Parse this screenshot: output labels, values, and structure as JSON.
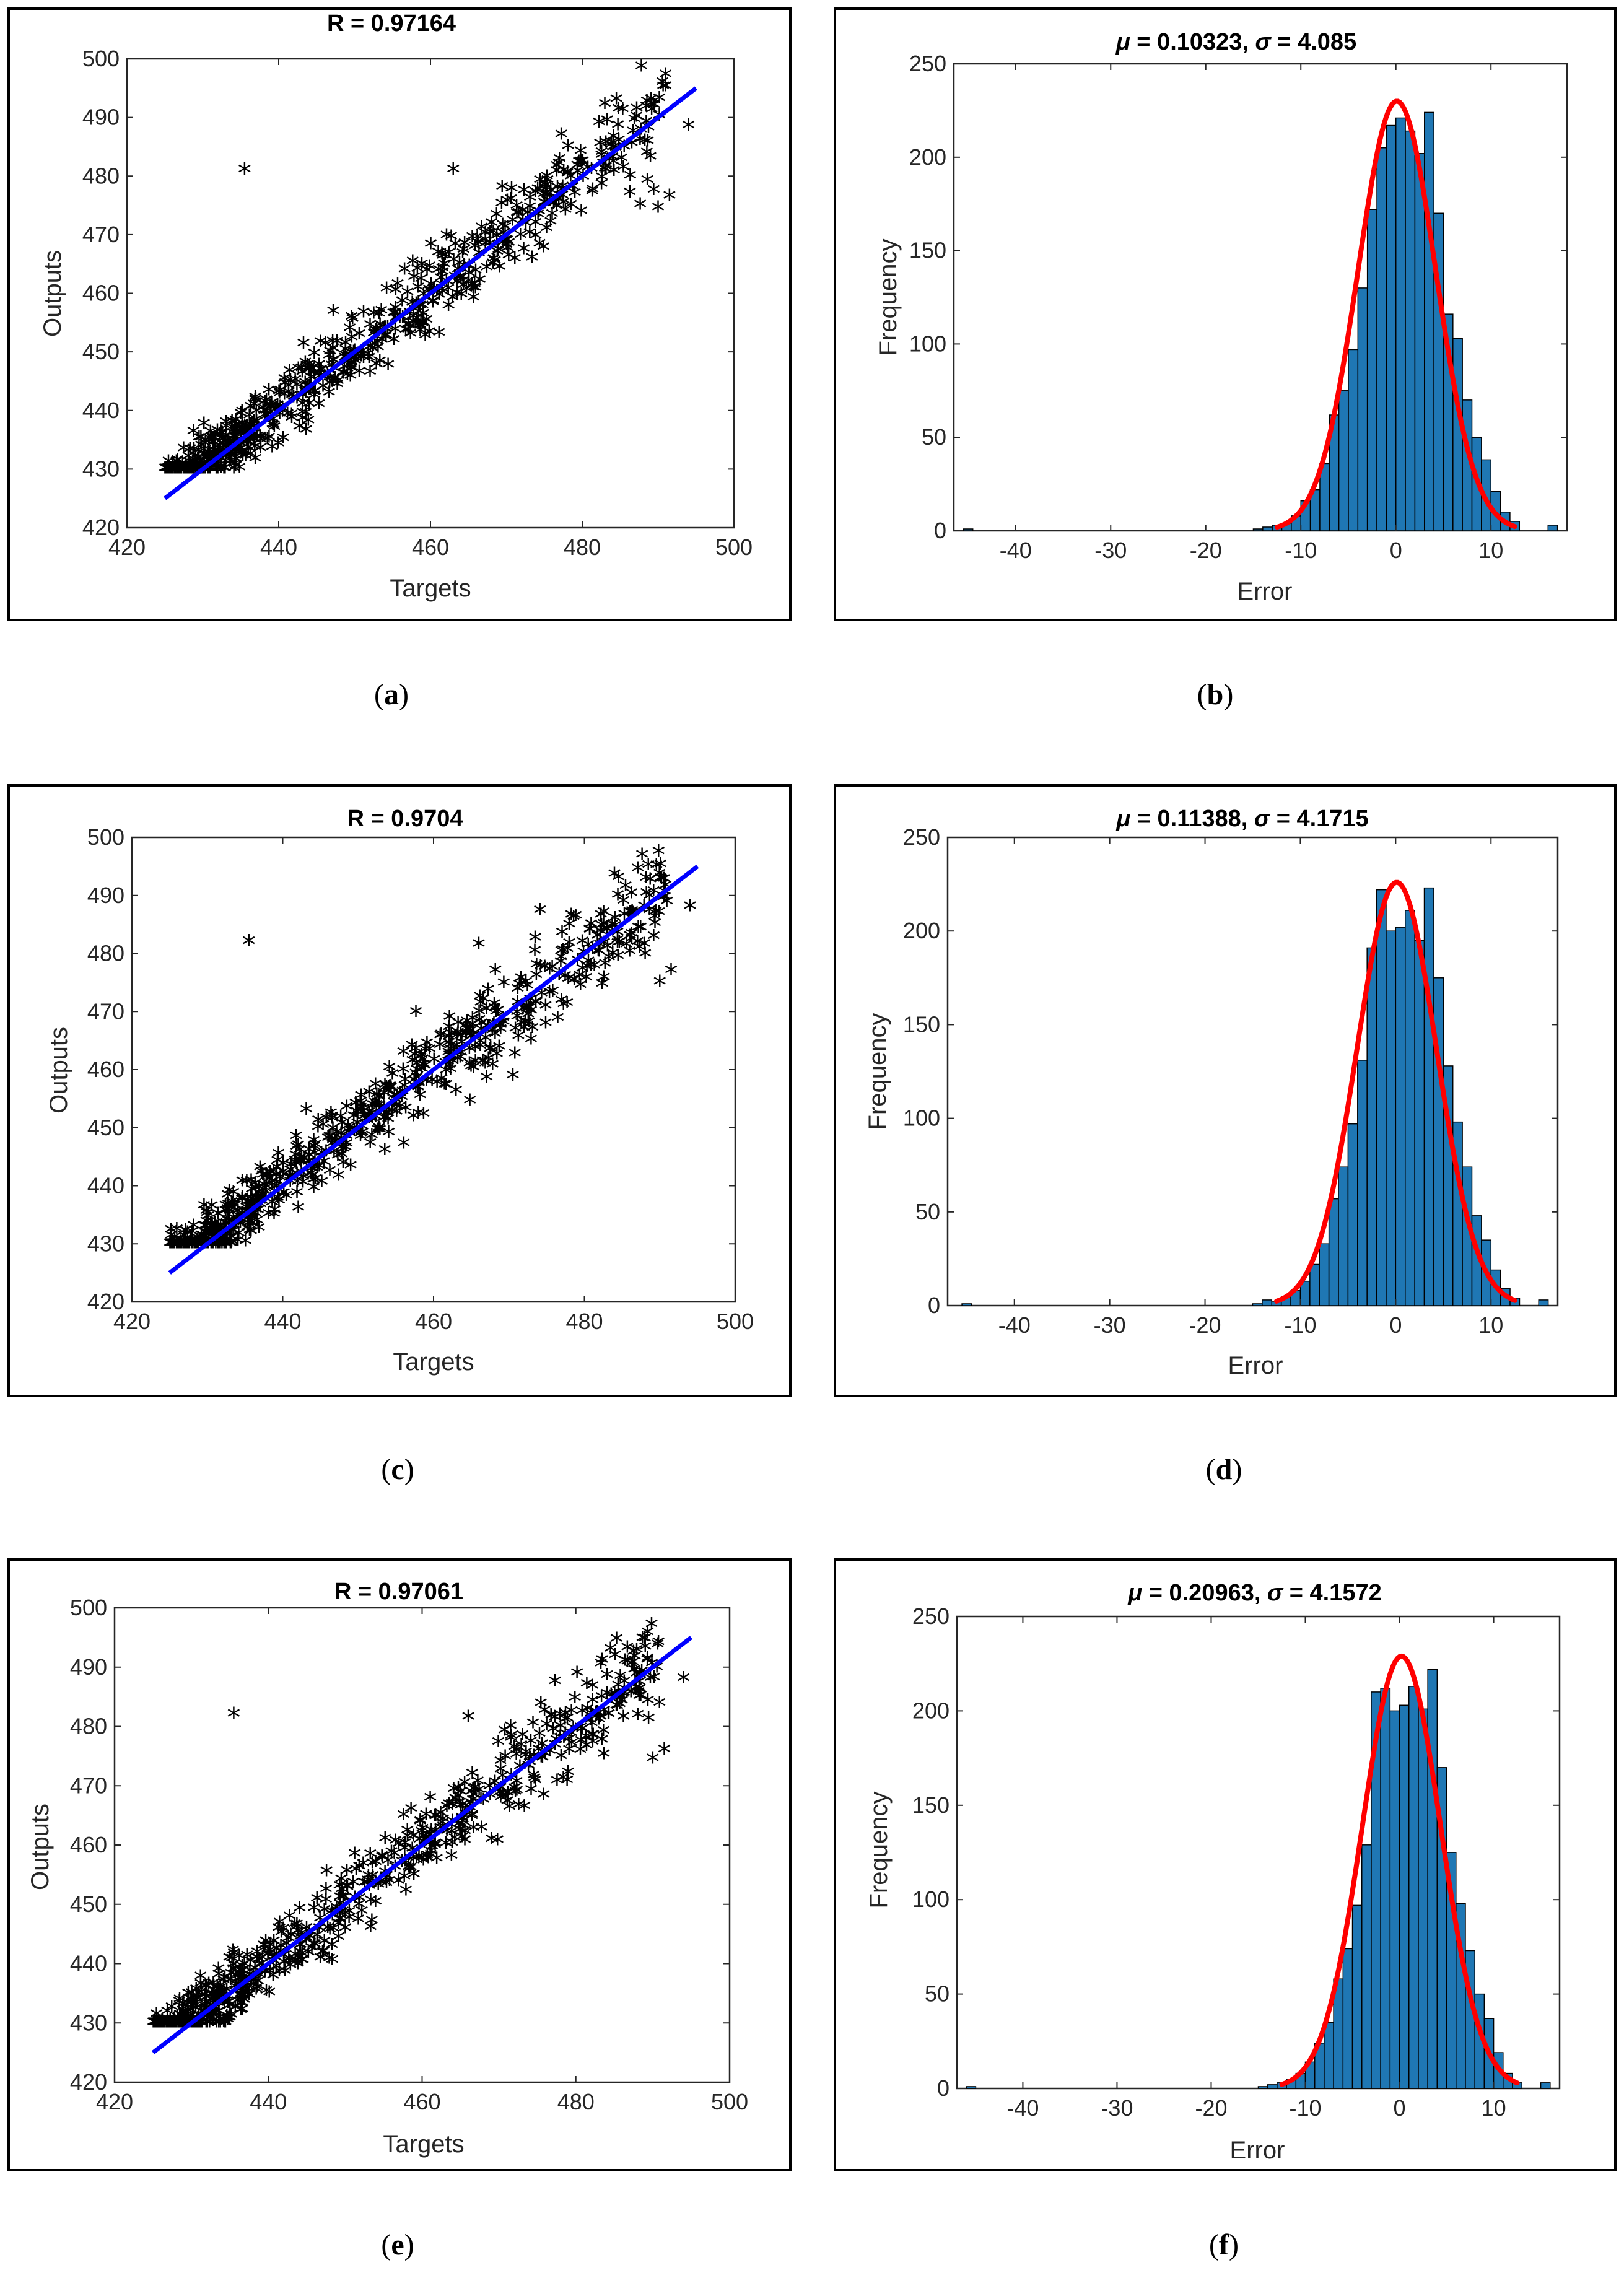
{
  "figure": {
    "panels": [
      {
        "id": "a",
        "caption": {
          "open": "(",
          "letter": "a",
          "close": ")"
        }
      },
      {
        "id": "b",
        "caption": {
          "open": "(",
          "letter": "b",
          "close": ")"
        }
      },
      {
        "id": "c",
        "caption": {
          "open": "(",
          "letter": "c",
          "close": ")"
        }
      },
      {
        "id": "d",
        "caption": {
          "open": "(",
          "letter": "d",
          "close": ")"
        }
      },
      {
        "id": "e",
        "caption": {
          "open": "(",
          "letter": "e",
          "close": ")"
        }
      },
      {
        "id": "f",
        "caption": {
          "open": "(",
          "letter": "f",
          "close": ")"
        }
      }
    ]
  },
  "colors": {
    "scatter_marker": "#000000",
    "fit_line": "#0000ff",
    "hist_bar": "#1f77b4",
    "normal_curve": "#ff0000"
  },
  "chart_data": [
    {
      "type": "scatter",
      "panel": "a",
      "title": "R = 0.97164",
      "xlabel": "Targets",
      "ylabel": "Outputs",
      "xlim": [
        420,
        500
      ],
      "ylim": [
        420,
        500
      ],
      "xticks": [
        "420",
        "440",
        "460",
        "480",
        "500"
      ],
      "yticks": [
        "420",
        "430",
        "440",
        "450",
        "460",
        "470",
        "480",
        "490",
        "500"
      ],
      "fit_line": {
        "x": [
          425,
          495
        ],
        "y": [
          425,
          495
        ]
      },
      "marker": "*",
      "outliers": [
        [
          435.5,
          480.5
        ],
        [
          463,
          480.5
        ],
        [
          490,
          474
        ],
        [
          491.5,
          476
        ],
        [
          494,
          488
        ],
        [
          489.5,
          491.5
        ],
        [
          484.5,
          492.5
        ]
      ]
    },
    {
      "type": "histogram",
      "panel": "b",
      "title": "μ = 0.10323, σ = 4.085",
      "title_parts": {
        "mu": "μ",
        "mu_val": " = 0.10323, ",
        "sigma": "σ",
        "sigma_val": " = 4.085"
      },
      "xlabel": "Error",
      "ylabel": "Frequency",
      "xlim": [
        -46.5,
        18
      ],
      "ylim": [
        0,
        250
      ],
      "xticks": [
        "-40",
        "-30",
        "-20",
        "-10",
        "0",
        "10"
      ],
      "yticks": [
        "0",
        "50",
        "100",
        "150",
        "200",
        "250"
      ],
      "bin_edges": [
        -15,
        -14,
        -13,
        -12,
        -11,
        -10,
        -9,
        -8,
        -7,
        -6,
        -5,
        -4,
        -3,
        -2,
        -1,
        0,
        1,
        2,
        3,
        4,
        5,
        6,
        7,
        8,
        9,
        10,
        11,
        12,
        13
      ],
      "counts": [
        1,
        2,
        3,
        4,
        8,
        16,
        22,
        36,
        62,
        75,
        97,
        130,
        172,
        205,
        217,
        221,
        214,
        202,
        224,
        170,
        116,
        103,
        70,
        50,
        38,
        21,
        10,
        5
      ],
      "extra_bars": [
        {
          "x": -45,
          "count": 1
        },
        {
          "x": 16.5,
          "count": 3
        }
      ],
      "normal": {
        "mu": 0.10323,
        "sigma": 4.085,
        "peak": 230,
        "range": [
          -12.5,
          12.5
        ]
      }
    },
    {
      "type": "scatter",
      "panel": "c",
      "title": "R = 0.9704",
      "xlabel": "Targets",
      "ylabel": "Outputs",
      "xlim": [
        420,
        500
      ],
      "ylim": [
        420,
        500
      ],
      "xticks": [
        "420",
        "440",
        "460",
        "480",
        "500"
      ],
      "yticks": [
        "420",
        "430",
        "440",
        "450",
        "460",
        "470",
        "480",
        "490",
        "500"
      ],
      "fit_line": {
        "x": [
          425,
          495
        ],
        "y": [
          425,
          495
        ]
      },
      "marker": "*",
      "outliers": [
        [
          435.5,
          481.5
        ],
        [
          466,
          481
        ],
        [
          490,
          474.5
        ],
        [
          491.5,
          476.5
        ],
        [
          494,
          487.5
        ],
        [
          484.5,
          492.5
        ]
      ]
    },
    {
      "type": "histogram",
      "panel": "d",
      "title": "μ = 0.11388, σ = 4.1715",
      "title_parts": {
        "mu": "μ",
        "mu_val": " = 0.11388, ",
        "sigma": "σ",
        "sigma_val": " = 4.1715"
      },
      "xlabel": "Error",
      "ylabel": "Frequency",
      "xlim": [
        -47,
        17
      ],
      "ylim": [
        0,
        250
      ],
      "xticks": [
        "-40",
        "-30",
        "-20",
        "-10",
        "0",
        "10"
      ],
      "yticks": [
        "0",
        "50",
        "100",
        "150",
        "200",
        "250"
      ],
      "bin_edges": [
        -15,
        -14,
        -13,
        -12,
        -11,
        -10,
        -9,
        -8,
        -7,
        -6,
        -5,
        -4,
        -3,
        -2,
        -1,
        0,
        1,
        2,
        3,
        4,
        5,
        6,
        7,
        8,
        9,
        10,
        11,
        12,
        13
      ],
      "counts": [
        1,
        3,
        2,
        5,
        8,
        13,
        22,
        33,
        57,
        74,
        97,
        131,
        191,
        222,
        200,
        202,
        211,
        195,
        223,
        175,
        128,
        98,
        74,
        48,
        35,
        19,
        9,
        4
      ],
      "extra_bars": [
        {
          "x": -45,
          "count": 1
        },
        {
          "x": 15.5,
          "count": 3
        }
      ],
      "normal": {
        "mu": 0.11388,
        "sigma": 4.1715,
        "peak": 226,
        "range": [
          -12.5,
          12.5
        ]
      }
    },
    {
      "type": "scatter",
      "panel": "e",
      "title": "R = 0.97061",
      "xlabel": "Targets",
      "ylabel": "Outputs",
      "xlim": [
        420,
        500
      ],
      "ylim": [
        420,
        500
      ],
      "xticks": [
        "420",
        "440",
        "460",
        "480",
        "500"
      ],
      "yticks": [
        "420",
        "430",
        "440",
        "450",
        "460",
        "470",
        "480",
        "490",
        "500"
      ],
      "fit_line": {
        "x": [
          425,
          495
        ],
        "y": [
          425,
          495
        ]
      },
      "marker": "*",
      "outliers": [
        [
          435.5,
          481.5
        ],
        [
          466,
          481
        ],
        [
          490,
          474
        ],
        [
          491.5,
          475.5
        ],
        [
          494,
          487.5
        ],
        [
          484.5,
          492.5
        ]
      ]
    },
    {
      "type": "histogram",
      "panel": "f",
      "title": "μ = 0.20963, σ = 4.1572",
      "title_parts": {
        "mu": "μ",
        "mu_val": " = 0.20963, ",
        "sigma": "σ",
        "sigma_val": " = 4.1572"
      },
      "xlabel": "Error",
      "ylabel": "Frequency",
      "xlim": [
        -47,
        17
      ],
      "ylim": [
        0,
        250
      ],
      "xticks": [
        "-40",
        "-30",
        "-20",
        "-10",
        "0",
        "10"
      ],
      "yticks": [
        "0",
        "50",
        "100",
        "150",
        "200",
        "250"
      ],
      "bin_edges": [
        -15,
        -14,
        -13,
        -12,
        -11,
        -10,
        -9,
        -8,
        -7,
        -6,
        -5,
        -4,
        -3,
        -2,
        -1,
        0,
        1,
        2,
        3,
        4,
        5,
        6,
        7,
        8,
        9,
        10,
        11,
        12,
        13
      ],
      "counts": [
        1,
        2,
        3,
        5,
        8,
        14,
        24,
        35,
        58,
        74,
        97,
        129,
        210,
        212,
        200,
        203,
        213,
        201,
        222,
        170,
        125,
        98,
        73,
        50,
        37,
        19,
        8,
        3
      ],
      "extra_bars": [
        {
          "x": -45.5,
          "count": 1
        },
        {
          "x": 15.5,
          "count": 3
        }
      ],
      "normal": {
        "mu": 0.20963,
        "sigma": 4.1572,
        "peak": 229,
        "range": [
          -12.5,
          12.5
        ]
      }
    }
  ]
}
